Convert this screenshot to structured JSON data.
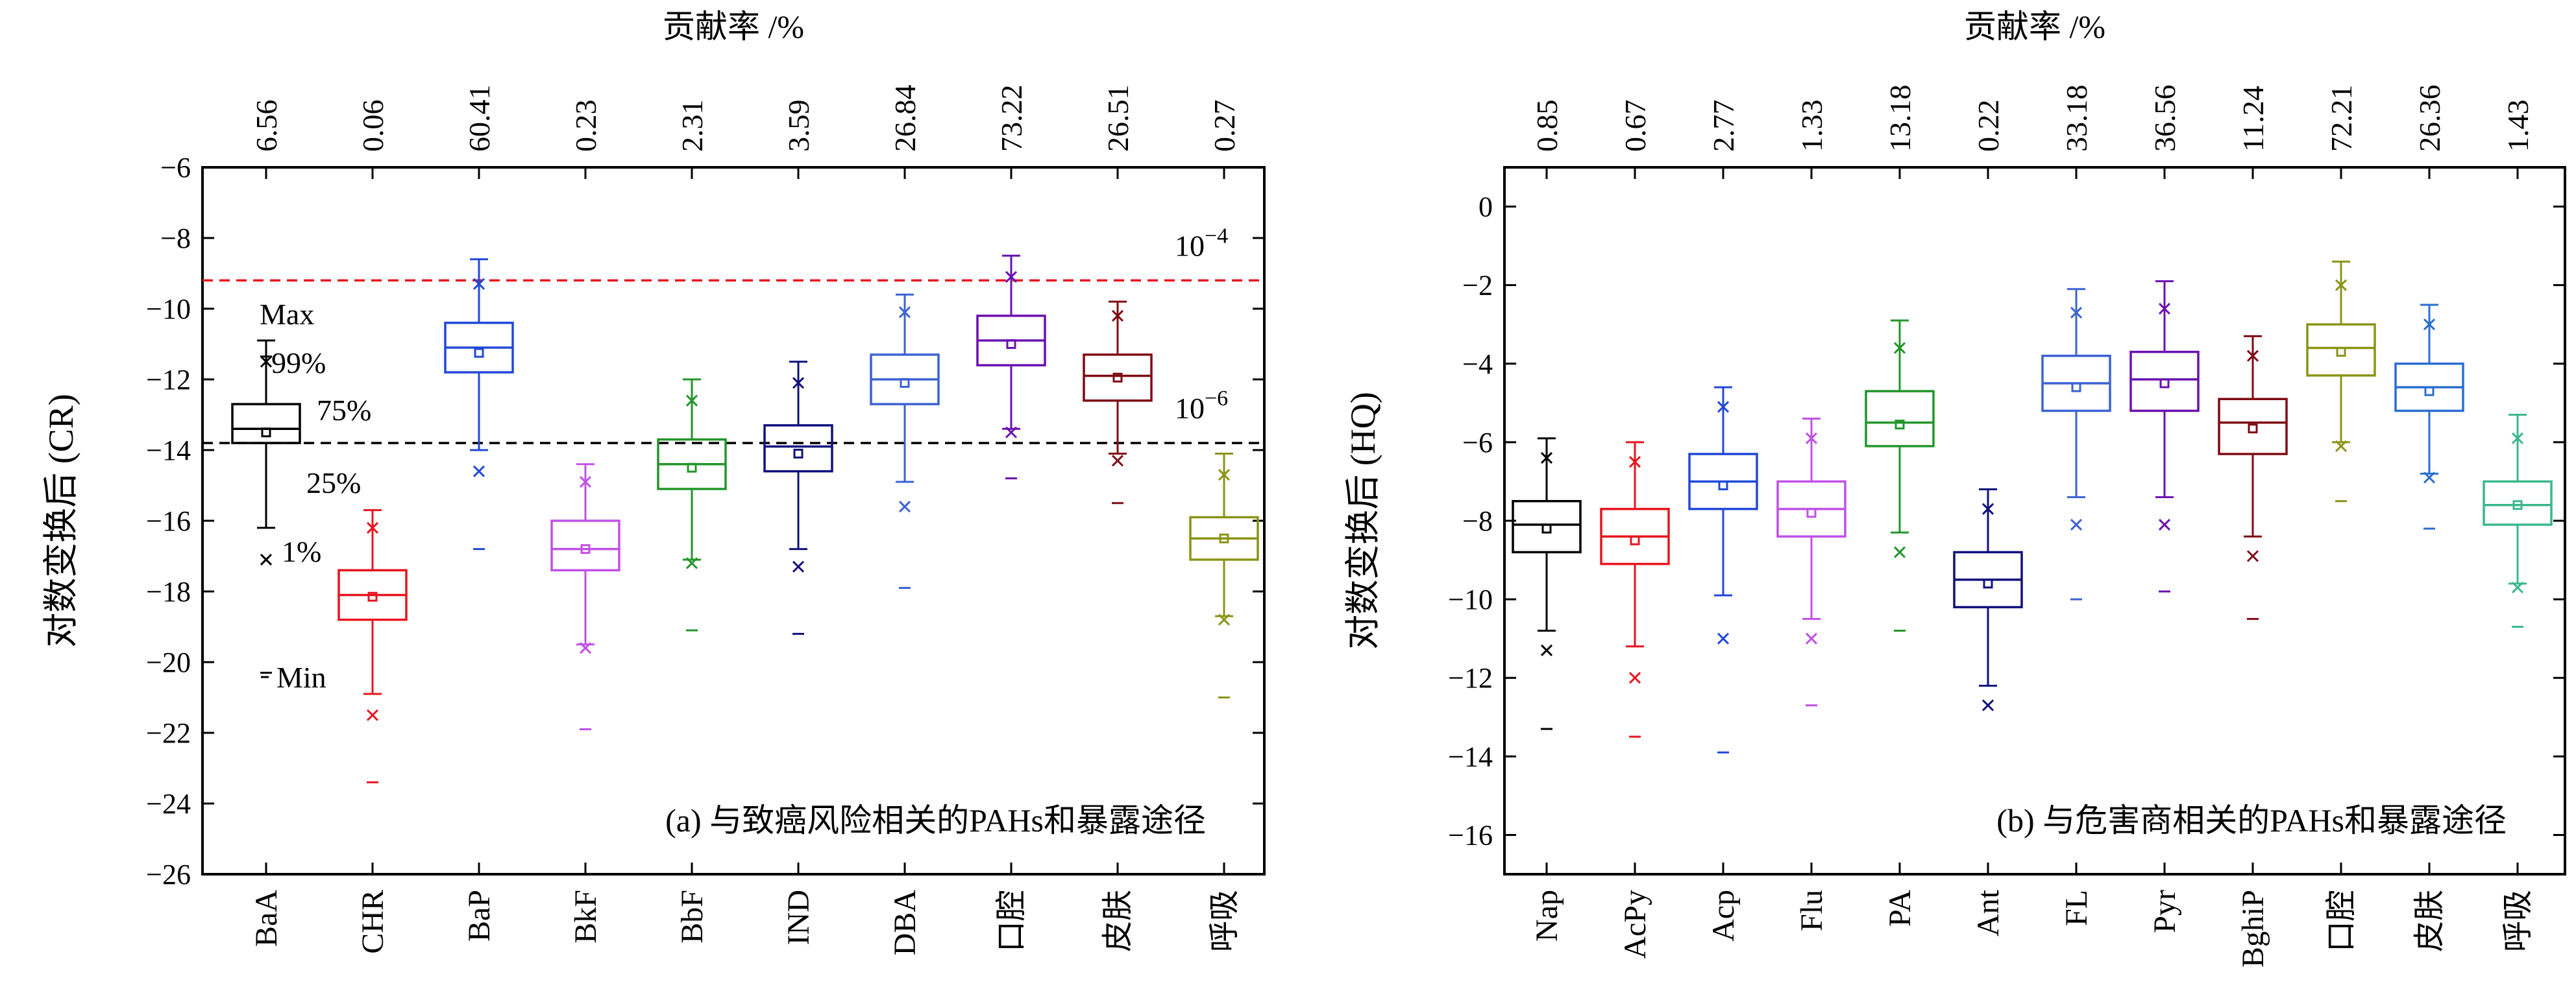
{
  "chart_data": [
    {
      "type": "box",
      "panel_label": "(a) 与致癌风险相关的PAHs和暴露途径",
      "top_axis_title": "贡献率 /%",
      "ylabel": "对数变换后 (CR)",
      "ylim": [
        -26,
        -6
      ],
      "yticks": [
        -6,
        -8,
        -10,
        -12,
        -14,
        -16,
        -18,
        -20,
        -22,
        -24,
        -26
      ],
      "categories": [
        "BaA",
        "CHR",
        "BaP",
        "BkF",
        "BbF",
        "IND",
        "DBA",
        "口腔",
        "皮肤",
        "呼吸"
      ],
      "contribution": [
        "6.56",
        "0.06",
        "60.41",
        "0.23",
        "2.31",
        "3.59",
        "26.84",
        "73.22",
        "26.51",
        "0.27"
      ],
      "colors": [
        "#000000",
        "#e8141e",
        "#2048d8",
        "#c050e6",
        "#22962a",
        "#10107e",
        "#3c62d4",
        "#6a10b0",
        "#7e0a14",
        "#8a9416"
      ],
      "boxes": [
        {
          "min": -20.3,
          "p1": -17.1,
          "whisker_low": -16.2,
          "q1": -13.8,
          "median": -13.4,
          "mean": -13.5,
          "q3": -12.7,
          "whisker_high": -10.9,
          "p99": -11.5,
          "max": -11.5
        },
        {
          "min": -23.4,
          "p1": -21.5,
          "whisker_low": -20.9,
          "q1": -18.8,
          "median": -18.1,
          "mean": -18.15,
          "q3": -17.4,
          "whisker_high": -15.7,
          "p99": -16.2,
          "max": null
        },
        {
          "min": -16.8,
          "p1": -14.6,
          "whisker_low": -14.0,
          "q1": -11.8,
          "median": -11.1,
          "mean": -11.25,
          "q3": -10.4,
          "whisker_high": -8.6,
          "p99": -9.3,
          "max": null
        },
        {
          "min": -21.9,
          "p1": -19.6,
          "whisker_low": -19.5,
          "q1": -17.4,
          "median": -16.8,
          "mean": -16.8,
          "q3": -16.0,
          "whisker_high": -14.4,
          "p99": -14.9,
          "max": null
        },
        {
          "min": -19.1,
          "p1": -17.2,
          "whisker_low": -17.1,
          "q1": -15.1,
          "median": -14.4,
          "mean": -14.5,
          "q3": -13.7,
          "whisker_high": -12.0,
          "p99": -12.6,
          "max": null
        },
        {
          "min": -19.2,
          "p1": -17.3,
          "whisker_low": -16.8,
          "q1": -14.6,
          "median": -13.9,
          "mean": -14.1,
          "q3": -13.3,
          "whisker_high": -11.5,
          "p99": -12.1,
          "max": null
        },
        {
          "min": -17.9,
          "p1": -15.6,
          "whisker_low": -14.9,
          "q1": -12.7,
          "median": -12.0,
          "mean": -12.1,
          "q3": -11.3,
          "whisker_high": -9.6,
          "p99": -10.1,
          "max": null
        },
        {
          "min": -14.8,
          "p1": -13.5,
          "whisker_low": -13.4,
          "q1": -11.6,
          "median": -10.9,
          "mean": -11.0,
          "q3": -10.2,
          "whisker_high": -8.5,
          "p99": -9.1,
          "max": null
        },
        {
          "min": -15.5,
          "p1": -14.3,
          "whisker_low": -14.1,
          "q1": -12.6,
          "median": -11.9,
          "mean": -11.95,
          "q3": -11.3,
          "whisker_high": -9.8,
          "p99": -10.2,
          "max": null
        },
        {
          "min": -21.0,
          "p1": -18.8,
          "whisker_low": -18.7,
          "q1": -17.1,
          "median": -16.5,
          "mean": -16.5,
          "q3": -15.9,
          "whisker_high": -14.1,
          "p99": -14.7,
          "max": null
        }
      ],
      "reference_lines": [
        {
          "value": -9.2,
          "label": "10",
          "exp": "−4",
          "color": "#e8141e"
        },
        {
          "value": -13.8,
          "label": "10",
          "exp": "−6",
          "color": "#000000"
        }
      ],
      "annotations": {
        "max": "Max",
        "p99": "99%",
        "q3": "75%",
        "q1": "25%",
        "p1": "1%",
        "min": "Min"
      },
      "grid": false
    },
    {
      "type": "box",
      "panel_label": "(b) 与危害商相关的PAHs和暴露途径",
      "top_axis_title": "贡献率 /%",
      "ylabel": "对数变换后 (HQ)",
      "ylim": [
        -17,
        1
      ],
      "yticks": [
        0,
        -2,
        -4,
        -6,
        -8,
        -10,
        -12,
        -14,
        -16
      ],
      "categories": [
        "Nap",
        "AcPy",
        "Acp",
        "Flu",
        "PA",
        "Ant",
        "FL",
        "Pyr",
        "BghiP",
        "口腔",
        "皮肤",
        "呼吸"
      ],
      "contribution": [
        "0.85",
        "0.67",
        "2.77",
        "1.33",
        "13.18",
        "0.22",
        "33.18",
        "36.56",
        "11.24",
        "72.21",
        "26.36",
        "1.43"
      ],
      "colors": [
        "#000000",
        "#e8141e",
        "#2048d8",
        "#c050e6",
        "#22962a",
        "#10107e",
        "#3c62d4",
        "#6a10b0",
        "#7e0a14",
        "#8a9416",
        "#2a6ed0",
        "#3ab88a"
      ],
      "boxes": [
        {
          "min": -13.3,
          "p1": -11.3,
          "whisker_low": -10.8,
          "q1": -8.8,
          "median": -8.1,
          "mean": -8.2,
          "q3": -7.5,
          "whisker_high": -5.9,
          "p99": -6.4
        },
        {
          "min": -13.5,
          "p1": -12.0,
          "whisker_low": -11.2,
          "q1": -9.1,
          "median": -8.4,
          "mean": -8.5,
          "q3": -7.7,
          "whisker_high": -6.0,
          "p99": -6.5
        },
        {
          "min": -13.9,
          "p1": -11.0,
          "whisker_low": -9.9,
          "q1": -7.7,
          "median": -7.0,
          "mean": -7.1,
          "q3": -6.3,
          "whisker_high": -4.6,
          "p99": -5.1
        },
        {
          "min": -12.7,
          "p1": -11.0,
          "whisker_low": -10.5,
          "q1": -8.4,
          "median": -7.7,
          "mean": -7.8,
          "q3": -7.0,
          "whisker_high": -5.4,
          "p99": -5.9
        },
        {
          "min": -10.8,
          "p1": -8.8,
          "whisker_low": -8.3,
          "q1": -6.1,
          "median": -5.5,
          "mean": -5.55,
          "q3": -4.7,
          "whisker_high": -2.9,
          "p99": -3.6
        },
        {
          "min": null,
          "p1": -12.7,
          "whisker_low": -12.2,
          "q1": -10.2,
          "median": -9.5,
          "mean": -9.6,
          "q3": -8.8,
          "whisker_high": -7.2,
          "p99": -7.7
        },
        {
          "min": -10.0,
          "p1": -8.1,
          "whisker_low": -7.4,
          "q1": -5.2,
          "median": -4.5,
          "mean": -4.6,
          "q3": -3.8,
          "whisker_high": -2.1,
          "p99": -2.7
        },
        {
          "min": -9.8,
          "p1": -8.1,
          "whisker_low": -7.4,
          "q1": -5.2,
          "median": -4.4,
          "mean": -4.5,
          "q3": -3.7,
          "whisker_high": -1.9,
          "p99": -2.6
        },
        {
          "min": -10.5,
          "p1": -8.9,
          "whisker_low": -8.4,
          "q1": -6.3,
          "median": -5.5,
          "mean": -5.65,
          "q3": -4.9,
          "whisker_high": -3.3,
          "p99": -3.8
        },
        {
          "min": -7.5,
          "p1": -6.1,
          "whisker_low": -6.0,
          "q1": -4.3,
          "median": -3.6,
          "mean": -3.7,
          "q3": -3.0,
          "whisker_high": -1.4,
          "p99": -2.0
        },
        {
          "min": -8.2,
          "p1": -6.9,
          "whisker_low": -6.8,
          "q1": -5.2,
          "median": -4.6,
          "mean": -4.7,
          "q3": -4.0,
          "whisker_high": -2.5,
          "p99": -3.0
        },
        {
          "min": -10.7,
          "p1": -9.7,
          "whisker_low": -9.6,
          "q1": -8.1,
          "median": -7.6,
          "mean": -7.6,
          "q3": -7.0,
          "whisker_high": -5.3,
          "p99": -5.9
        }
      ],
      "grid": false
    }
  ]
}
